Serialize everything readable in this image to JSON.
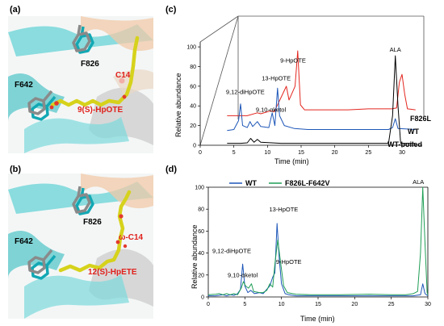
{
  "panels": {
    "a": {
      "label": "(a)",
      "residues": [
        "F826",
        "F642"
      ],
      "ligand_labels": [
        "C14",
        "9(S)-HpOTE"
      ]
    },
    "b": {
      "label": "(b)",
      "residues": [
        "F826",
        "F642"
      ],
      "ligand_labels": [
        "ω-C14",
        "12(S)-HpETE"
      ]
    },
    "c": {
      "label": "(c)"
    },
    "d": {
      "label": "(d)"
    }
  },
  "chart_data": [
    {
      "id": "c",
      "type": "line",
      "xlabel": "Time (min)",
      "ylabel": "Relative abundance",
      "xlim": [
        0,
        33
      ],
      "ylim": [
        0,
        105
      ],
      "xticks": [
        0,
        5,
        10,
        15,
        20,
        25,
        30
      ],
      "yticks": [
        0,
        20,
        40,
        60,
        80,
        100
      ],
      "colors": {
        "F826L": "#e3261f",
        "WT": "#1d56b8",
        "WT-boiled": "#000000"
      },
      "series": [
        {
          "name": "F826L",
          "color": "#e3261f",
          "points": [
            [
              4,
              30
            ],
            [
              7,
              30
            ],
            [
              8.5,
              33
            ],
            [
              9,
              32
            ],
            [
              10.5,
              35
            ],
            [
              11,
              34
            ],
            [
              12.8,
              60
            ],
            [
              13.2,
              46
            ],
            [
              13.6,
              52
            ],
            [
              14.1,
              60
            ],
            [
              14.5,
              96
            ],
            [
              14.9,
              41
            ],
            [
              15.5,
              36
            ],
            [
              18,
              36
            ],
            [
              22,
              36
            ],
            [
              25,
              37
            ],
            [
              28.5,
              37
            ],
            [
              29.2,
              38
            ],
            [
              29.6,
              64
            ],
            [
              30,
              72
            ],
            [
              30.4,
              52
            ],
            [
              30.8,
              37
            ],
            [
              32,
              36
            ]
          ]
        },
        {
          "name": "WT",
          "color": "#1d56b8",
          "points": [
            [
              4,
              15
            ],
            [
              5,
              16
            ],
            [
              5.7,
              25
            ],
            [
              6,
              42
            ],
            [
              6.3,
              20
            ],
            [
              7,
              18
            ],
            [
              7.4,
              24
            ],
            [
              7.8,
              19
            ],
            [
              8.5,
              24
            ],
            [
              9,
              19
            ],
            [
              10.2,
              18
            ],
            [
              10.7,
              33
            ],
            [
              11.1,
              20
            ],
            [
              11.5,
              58
            ],
            [
              11.8,
              30
            ],
            [
              12.5,
              20
            ],
            [
              14,
              17
            ],
            [
              16,
              16
            ],
            [
              20,
              16
            ],
            [
              25,
              16
            ],
            [
              28,
              16
            ],
            [
              28.6,
              18
            ],
            [
              29,
              27
            ],
            [
              29.4,
              17
            ],
            [
              32,
              16
            ]
          ]
        },
        {
          "name": "WT-boiled",
          "color": "#000000",
          "points": [
            [
              4,
              2
            ],
            [
              6,
              2
            ],
            [
              7,
              2.5
            ],
            [
              7.5,
              7
            ],
            [
              8,
              3
            ],
            [
              8.5,
              6
            ],
            [
              9,
              3
            ],
            [
              12,
              2
            ],
            [
              20,
              2
            ],
            [
              28,
              2
            ],
            [
              28.6,
              30
            ],
            [
              29,
              91
            ],
            [
              29.4,
              40
            ],
            [
              29.8,
              2
            ],
            [
              32,
              2
            ]
          ]
        }
      ],
      "annotations": [
        {
          "text": "9-HpOTE",
          "x": 13.8,
          "y": 84
        },
        {
          "text": "13-HpOTE",
          "x": 11.3,
          "y": 66
        },
        {
          "text": "9,12-diHpOTE",
          "x": 6.7,
          "y": 52
        },
        {
          "text": "9,10-αketol",
          "x": 10.5,
          "y": 34
        },
        {
          "text": "ALA",
          "x": 29,
          "y": 95
        }
      ],
      "legend": [
        "F826L",
        "WT",
        "WT-boiled"
      ]
    },
    {
      "id": "d",
      "type": "line",
      "xlabel": "Time (min)",
      "ylabel": "Relative abundance",
      "xlim": [
        0,
        30
      ],
      "ylim": [
        0,
        100
      ],
      "xticks": [
        0,
        5,
        10,
        15,
        20,
        25,
        30
      ],
      "yticks": [
        0,
        20,
        40,
        60,
        80,
        100
      ],
      "colors": {
        "WT": "#1d56b8",
        "F826L-F642V": "#1f9e55"
      },
      "series": [
        {
          "name": "WT",
          "color": "#1d56b8",
          "points": [
            [
              0,
              1
            ],
            [
              1,
              1
            ],
            [
              2,
              2
            ],
            [
              2.5,
              1
            ],
            [
              3,
              2
            ],
            [
              3.5,
              1.5
            ],
            [
              4,
              3
            ],
            [
              4.4,
              7
            ],
            [
              4.7,
              30
            ],
            [
              5,
              10
            ],
            [
              5.4,
              4
            ],
            [
              5.8,
              6
            ],
            [
              6.3,
              3
            ],
            [
              7,
              4
            ],
            [
              7.5,
              3
            ],
            [
              8,
              7
            ],
            [
              8.4,
              10
            ],
            [
              8.8,
              18
            ],
            [
              9.1,
              22
            ],
            [
              9.4,
              67
            ],
            [
              9.7,
              35
            ],
            [
              10,
              12
            ],
            [
              10.5,
              3
            ],
            [
              11,
              2
            ],
            [
              12,
              1
            ],
            [
              15,
              1
            ],
            [
              20,
              1
            ],
            [
              25,
              1
            ],
            [
              27,
              1
            ],
            [
              28,
              1
            ],
            [
              29,
              2
            ],
            [
              29.3,
              12
            ],
            [
              29.6,
              3
            ],
            [
              30,
              1
            ]
          ]
        },
        {
          "name": "F826L-F642V",
          "color": "#1f9e55",
          "points": [
            [
              0,
              2
            ],
            [
              1,
              2.5
            ],
            [
              1.5,
              3
            ],
            [
              2,
              2
            ],
            [
              2.5,
              3
            ],
            [
              3,
              2
            ],
            [
              3.5,
              3
            ],
            [
              4,
              2
            ],
            [
              4.5,
              8
            ],
            [
              4.8,
              14
            ],
            [
              5.1,
              10
            ],
            [
              5.5,
              8
            ],
            [
              5.9,
              12
            ],
            [
              6.2,
              5
            ],
            [
              7,
              4
            ],
            [
              7.5,
              4
            ],
            [
              8,
              6
            ],
            [
              8.4,
              12
            ],
            [
              8.8,
              9
            ],
            [
              9.1,
              30
            ],
            [
              9.5,
              52
            ],
            [
              9.9,
              30
            ],
            [
              10.3,
              10
            ],
            [
              10.8,
              4
            ],
            [
              11.5,
              3
            ],
            [
              12,
              2.5
            ],
            [
              14,
              2
            ],
            [
              18,
              2
            ],
            [
              22,
              2.5
            ],
            [
              25,
              2
            ],
            [
              27,
              2
            ],
            [
              28,
              3
            ],
            [
              28.6,
              5
            ],
            [
              29,
              40
            ],
            [
              29.3,
              100
            ],
            [
              29.6,
              50
            ],
            [
              29.9,
              4
            ],
            [
              30,
              2
            ]
          ]
        }
      ],
      "annotations": [
        {
          "text": "13-HpOTE",
          "x": 10.3,
          "y": 78
        },
        {
          "text": "9,12-diHpOTE",
          "x": 3.2,
          "y": 40
        },
        {
          "text": "9,10-αketol",
          "x": 4.7,
          "y": 18
        },
        {
          "text": "9-HpOTE",
          "x": 11,
          "y": 30
        },
        {
          "text": "ALA",
          "x": 28.7,
          "y": 103
        }
      ],
      "legend": [
        "WT",
        "F826L-F642V"
      ]
    }
  ]
}
